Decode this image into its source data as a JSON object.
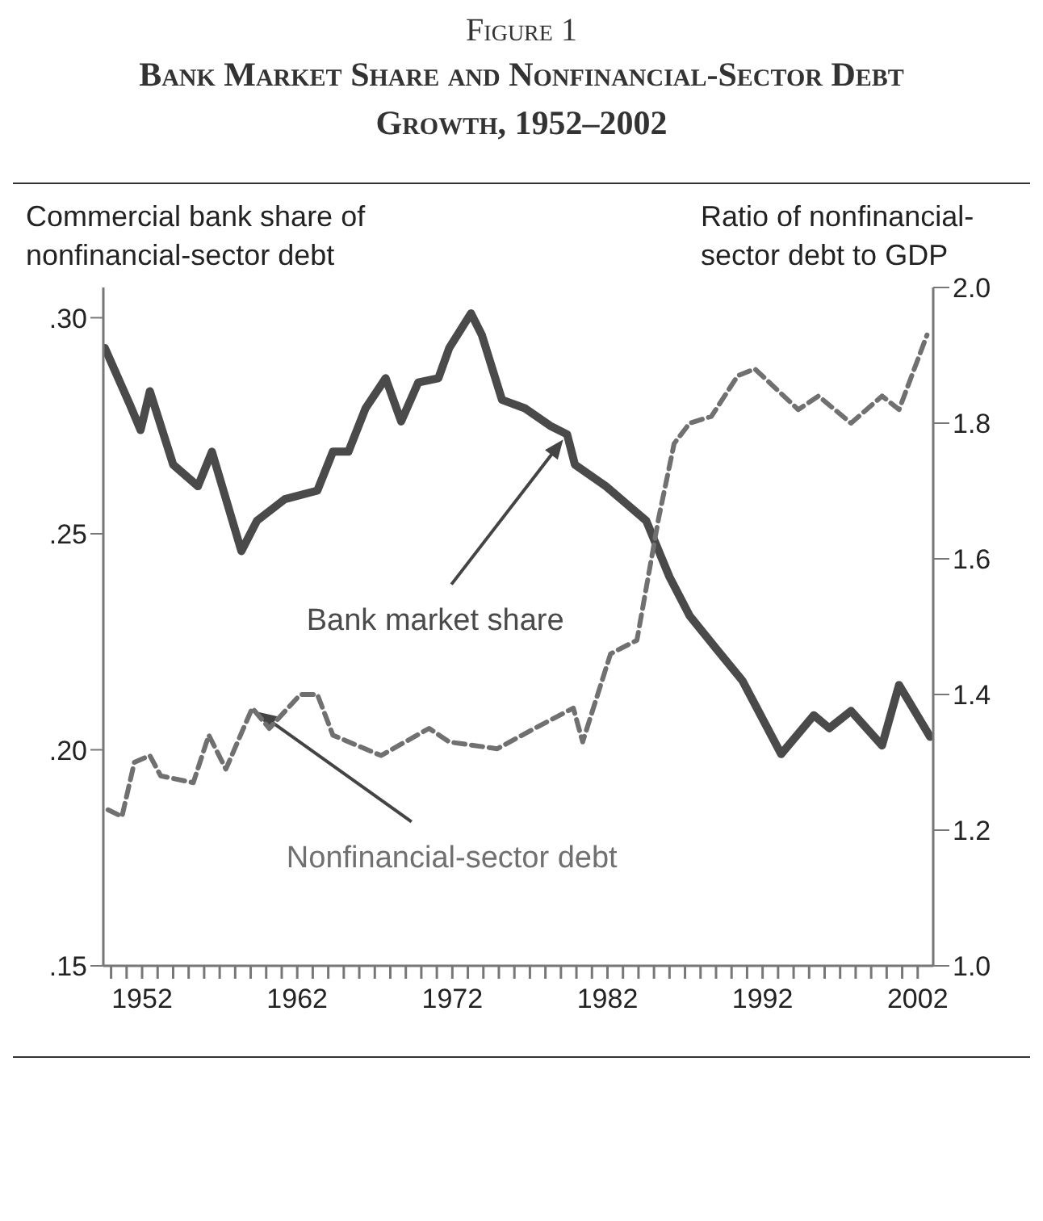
{
  "chart_data": {
    "type": "line",
    "title": "Figure 1",
    "subtitle": "Bank Market Share and Nonfinancial-Sector Debt Growth, 1952–2002",
    "ylabel": "Commercial bank share of nonfinancial-sector debt",
    "y2label": "Ratio of nonfinancial-sector debt to GDP",
    "xlim": [
      1949.5,
      2003
    ],
    "ylim": [
      0.15,
      0.307
    ],
    "y2lim": [
      1.0,
      2.0
    ],
    "xticks": [
      {
        "value": 1950,
        "label": null
      },
      {
        "value": 1951,
        "label": null
      },
      1952,
      {
        "value": 1953,
        "label": null
      },
      {
        "value": 1954,
        "label": null
      },
      {
        "value": 1955,
        "label": null
      },
      {
        "value": 1956,
        "label": null
      },
      {
        "value": 1957,
        "label": null
      },
      {
        "value": 1958,
        "label": null
      },
      {
        "value": 1959,
        "label": null
      },
      {
        "value": 1960,
        "label": null
      },
      {
        "value": 1961,
        "label": null
      },
      1962,
      {
        "value": 1963,
        "label": null
      },
      {
        "value": 1964,
        "label": null
      },
      {
        "value": 1965,
        "label": null
      },
      {
        "value": 1966,
        "label": null
      },
      {
        "value": 1967,
        "label": null
      },
      {
        "value": 1968,
        "label": null
      },
      {
        "value": 1969,
        "label": null
      },
      {
        "value": 1970,
        "label": null
      },
      {
        "value": 1971,
        "label": null
      },
      1972,
      {
        "value": 1973,
        "label": null
      },
      {
        "value": 1974,
        "label": null
      },
      {
        "value": 1975,
        "label": null
      },
      {
        "value": 1976,
        "label": null
      },
      {
        "value": 1977,
        "label": null
      },
      {
        "value": 1978,
        "label": null
      },
      {
        "value": 1979,
        "label": null
      },
      {
        "value": 1980,
        "label": null
      },
      {
        "value": 1981,
        "label": null
      },
      1982,
      {
        "value": 1983,
        "label": null
      },
      {
        "value": 1984,
        "label": null
      },
      {
        "value": 1985,
        "label": null
      },
      {
        "value": 1986,
        "label": null
      },
      {
        "value": 1987,
        "label": null
      },
      {
        "value": 1988,
        "label": null
      },
      {
        "value": 1989,
        "label": null
      },
      {
        "value": 1990,
        "label": null
      },
      {
        "value": 1991,
        "label": null
      },
      1992,
      {
        "value": 1993,
        "label": null
      },
      {
        "value": 1994,
        "label": null
      },
      {
        "value": 1995,
        "label": null
      },
      {
        "value": 1996,
        "label": null
      },
      {
        "value": 1997,
        "label": null
      },
      {
        "value": 1998,
        "label": null
      },
      {
        "value": 1999,
        "label": null
      },
      {
        "value": 2000,
        "label": null
      },
      {
        "value": 2001,
        "label": null
      },
      2002
    ],
    "yticks": [
      {
        "value": 0.15,
        "label": ".15"
      },
      {
        "value": 0.2,
        "label": ".20"
      },
      {
        "value": 0.25,
        "label": ".25"
      },
      {
        "value": 0.3,
        "label": ".30"
      }
    ],
    "y2ticks": [
      {
        "value": 1.0,
        "label": "1.0"
      },
      {
        "value": 1.2,
        "label": "1.2"
      },
      {
        "value": 1.4,
        "label": "1.4"
      },
      {
        "value": 1.6,
        "label": "1.6"
      },
      {
        "value": 1.8,
        "label": "1.8"
      },
      {
        "value": 2.0,
        "label": "2.0"
      }
    ],
    "marker": "none",
    "series": [
      {
        "name": "Bank market share",
        "color": "#4a4a4a",
        "line_style": "solid",
        "x": [
          1949.6,
          1951.2,
          1951.9,
          1952.5,
          1954,
          1955.6,
          1956.5,
          1958.4,
          1959.4,
          1961.2,
          1963.3,
          1964.3,
          1965.3,
          1966.4,
          1967.7,
          1968.7,
          1969.8,
          1971.1,
          1971.8,
          1973.2,
          1973.9,
          1975.2,
          1976.7,
          1978.3,
          1979.4,
          1979.9,
          1981.9,
          1983.2,
          1984.5,
          1986,
          1987.3,
          1989.1,
          1990.7,
          1993.2,
          1995.3,
          1996.3,
          1997.7,
          1999.7,
          2000.8,
          2002.8
        ],
        "values": [
          0.293,
          0.28,
          0.274,
          0.283,
          0.266,
          0.261,
          0.269,
          0.246,
          0.253,
          0.258,
          0.26,
          0.269,
          0.269,
          0.279,
          0.286,
          0.276,
          0.285,
          0.286,
          0.293,
          0.301,
          0.296,
          0.281,
          0.279,
          0.275,
          0.273,
          0.266,
          0.261,
          0.257,
          0.253,
          0.24,
          0.231,
          0.223,
          0.216,
          0.199,
          0.208,
          0.205,
          0.209,
          0.201,
          0.215,
          0.203
        ]
      },
      {
        "name": "Nonfinancial-sector debt",
        "color": "#707070",
        "line_style": "dashed",
        "axis": "y2",
        "x": [
          1949.8,
          1950.7,
          1951.5,
          1952.5,
          1953.2,
          1955.3,
          1956.3,
          1957.4,
          1959.1,
          1960.2,
          1962.2,
          1963.3,
          1964.3,
          1967.4,
          1970.5,
          1971.8,
          1974.9,
          1977.3,
          1979.8,
          1980.4,
          1982.2,
          1983.9,
          1985.3,
          1986.3,
          1987.3,
          1988.7,
          1990.4,
          1991.5,
          1994.3,
          1995.6,
          1997.7,
          1999.7,
          2000.8,
          2002.6
        ],
        "values": [
          1.23,
          1.22,
          1.3,
          1.31,
          1.28,
          1.27,
          1.34,
          1.29,
          1.38,
          1.35,
          1.4,
          1.4,
          1.34,
          1.31,
          1.35,
          1.33,
          1.32,
          1.35,
          1.38,
          1.33,
          1.46,
          1.48,
          1.66,
          1.77,
          1.8,
          1.81,
          1.87,
          1.88,
          1.82,
          1.84,
          1.8,
          1.84,
          1.82,
          1.93
        ]
      }
    ]
  }
}
